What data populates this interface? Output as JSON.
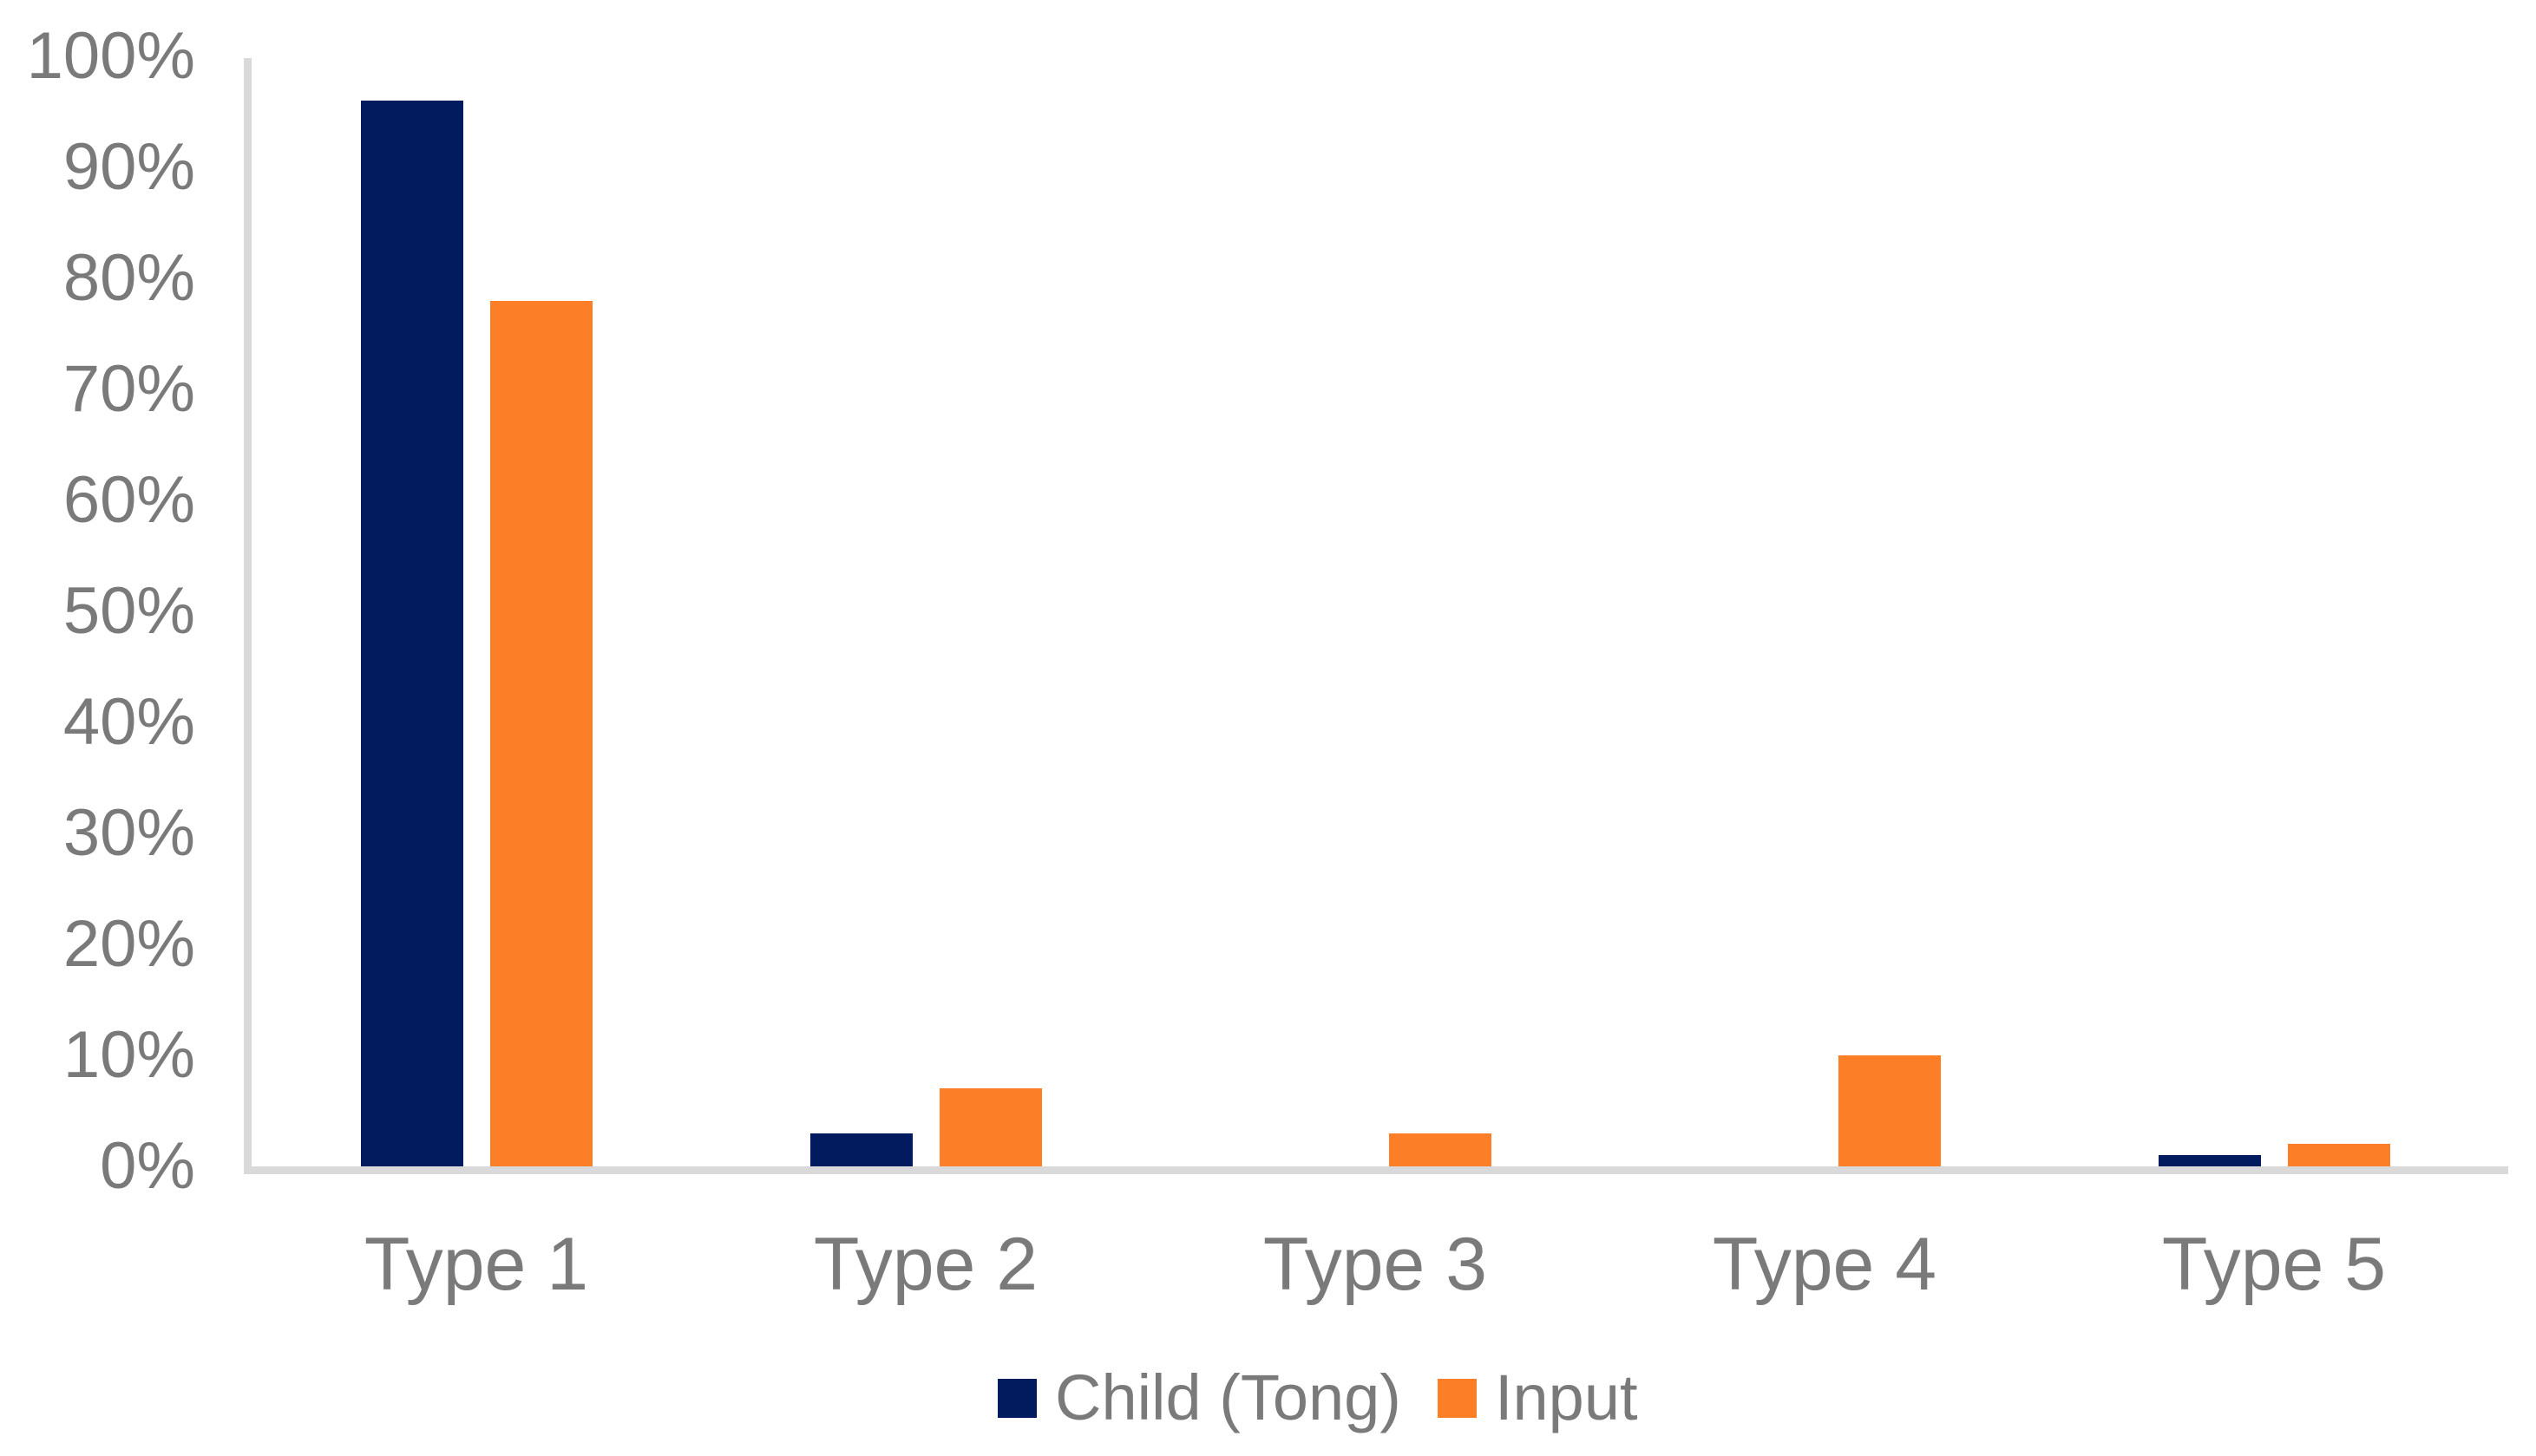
{
  "chart_data": {
    "type": "bar",
    "title": "",
    "categories": [
      "Type 1",
      "Type 2",
      "Type 3",
      "Type 4",
      "Type 5"
    ],
    "series": [
      {
        "name": "Child (Tong)",
        "color": "#021b5e",
        "values": [
          96,
          3,
          0,
          0,
          1
        ]
      },
      {
        "name": "Input",
        "color": "#fc7e26",
        "values": [
          78,
          7,
          3,
          10,
          2
        ]
      }
    ],
    "y_axis": {
      "min": 0,
      "max": 100,
      "step": 10,
      "tick_labels": [
        "0%",
        "10%",
        "20%",
        "30%",
        "40%",
        "50%",
        "60%",
        "70%",
        "80%",
        "90%",
        "100%"
      ],
      "unit": "percent"
    },
    "x_axis": {
      "tick_labels": [
        "Type 1",
        "Type 2",
        "Type 3",
        "Type 4",
        "Type 5"
      ]
    },
    "grid": false,
    "legend_position": "bottom",
    "colors": {
      "axis_line": "#d9d9d9",
      "tick_text": "#7a7a7a",
      "background": "#ffffff"
    }
  }
}
